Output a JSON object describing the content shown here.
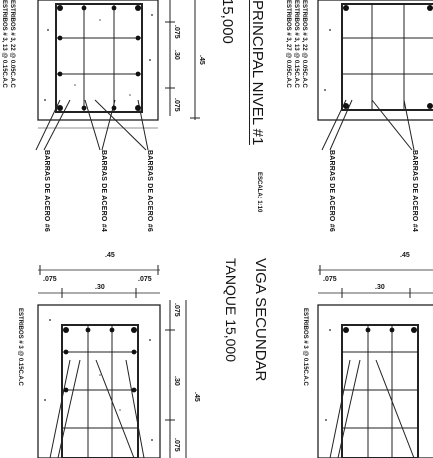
{
  "sheet": {
    "col1": {
      "stirrups": [
        "ESTRIBOS # 3, 22 @ 0.05C.A.C",
        "ESTRIBOS # 3, 13 @ 0.15C.A.C"
      ],
      "bars": [
        "BARRAS DE ACERO #6",
        "BARRAS DE ACERO #4",
        "BARRAS DE ACERO #6"
      ],
      "dims": [
        ".075",
        ".30",
        ".45",
        ".075"
      ]
    },
    "title1": {
      "label": "PRINCIPAL NIVEL #1",
      "sub": "15,000",
      "scale": "ESCALA: 1:10"
    },
    "col2": {
      "stirrups": [
        "ESTRIBOS # 3, 22 @ 0.05C.A.C",
        "ESTRIBOS # 3, 13 @ 0.15C.A.C",
        "ESTRIBOS # 3, 27 @ 0.05C.A.C"
      ],
      "bars": [
        "BARRAS DE ACERO #6",
        "BARRAS DE ACERO #4"
      ]
    },
    "beam1": {
      "stirrup": "ESTRIBOS # 3 @ 0.15C.A.C",
      "dims": [
        ".45",
        ".075",
        ".30",
        ".075",
        ".075",
        ".30",
        ".45",
        ".075"
      ]
    },
    "title2": {
      "label": "VIGA SECUNDAR",
      "sub": "TANQUE 15,000"
    },
    "beam2": {
      "stirrup": "ESTRIBOS # 3 @ 0.15C.A.C",
      "dims": [
        ".45",
        ".075",
        ".30"
      ]
    }
  }
}
